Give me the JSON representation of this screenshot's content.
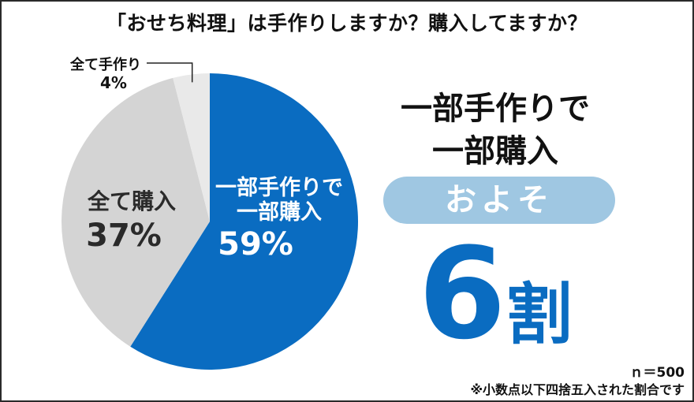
{
  "title": "「おせち料理」は手作りしますか？購入してますか？",
  "chart_data": {
    "type": "pie",
    "slices": [
      {
        "label": [
          "一部手作りで",
          "一部購入"
        ],
        "value": 59,
        "value_label": "59%",
        "color": "#0a6cc1",
        "text_color": "#ffffff"
      },
      {
        "label": [
          "全て購入"
        ],
        "value": 37,
        "value_label": "37%",
        "color": "#d4d4d4",
        "text_color": "#2a2a2a"
      },
      {
        "label": [
          "全て手作り"
        ],
        "value": 4,
        "value_label": "4%",
        "color": "#e9e9e9",
        "text_color": "#111111"
      }
    ]
  },
  "headline": {
    "line1": "一部手作りで",
    "line2": "一部購入",
    "pill": "およそ",
    "big_number": "6",
    "big_unit": "割"
  },
  "footnotes": {
    "n": "ｎ＝500",
    "rounding": "※小数点以下四捨五入された割合です"
  }
}
